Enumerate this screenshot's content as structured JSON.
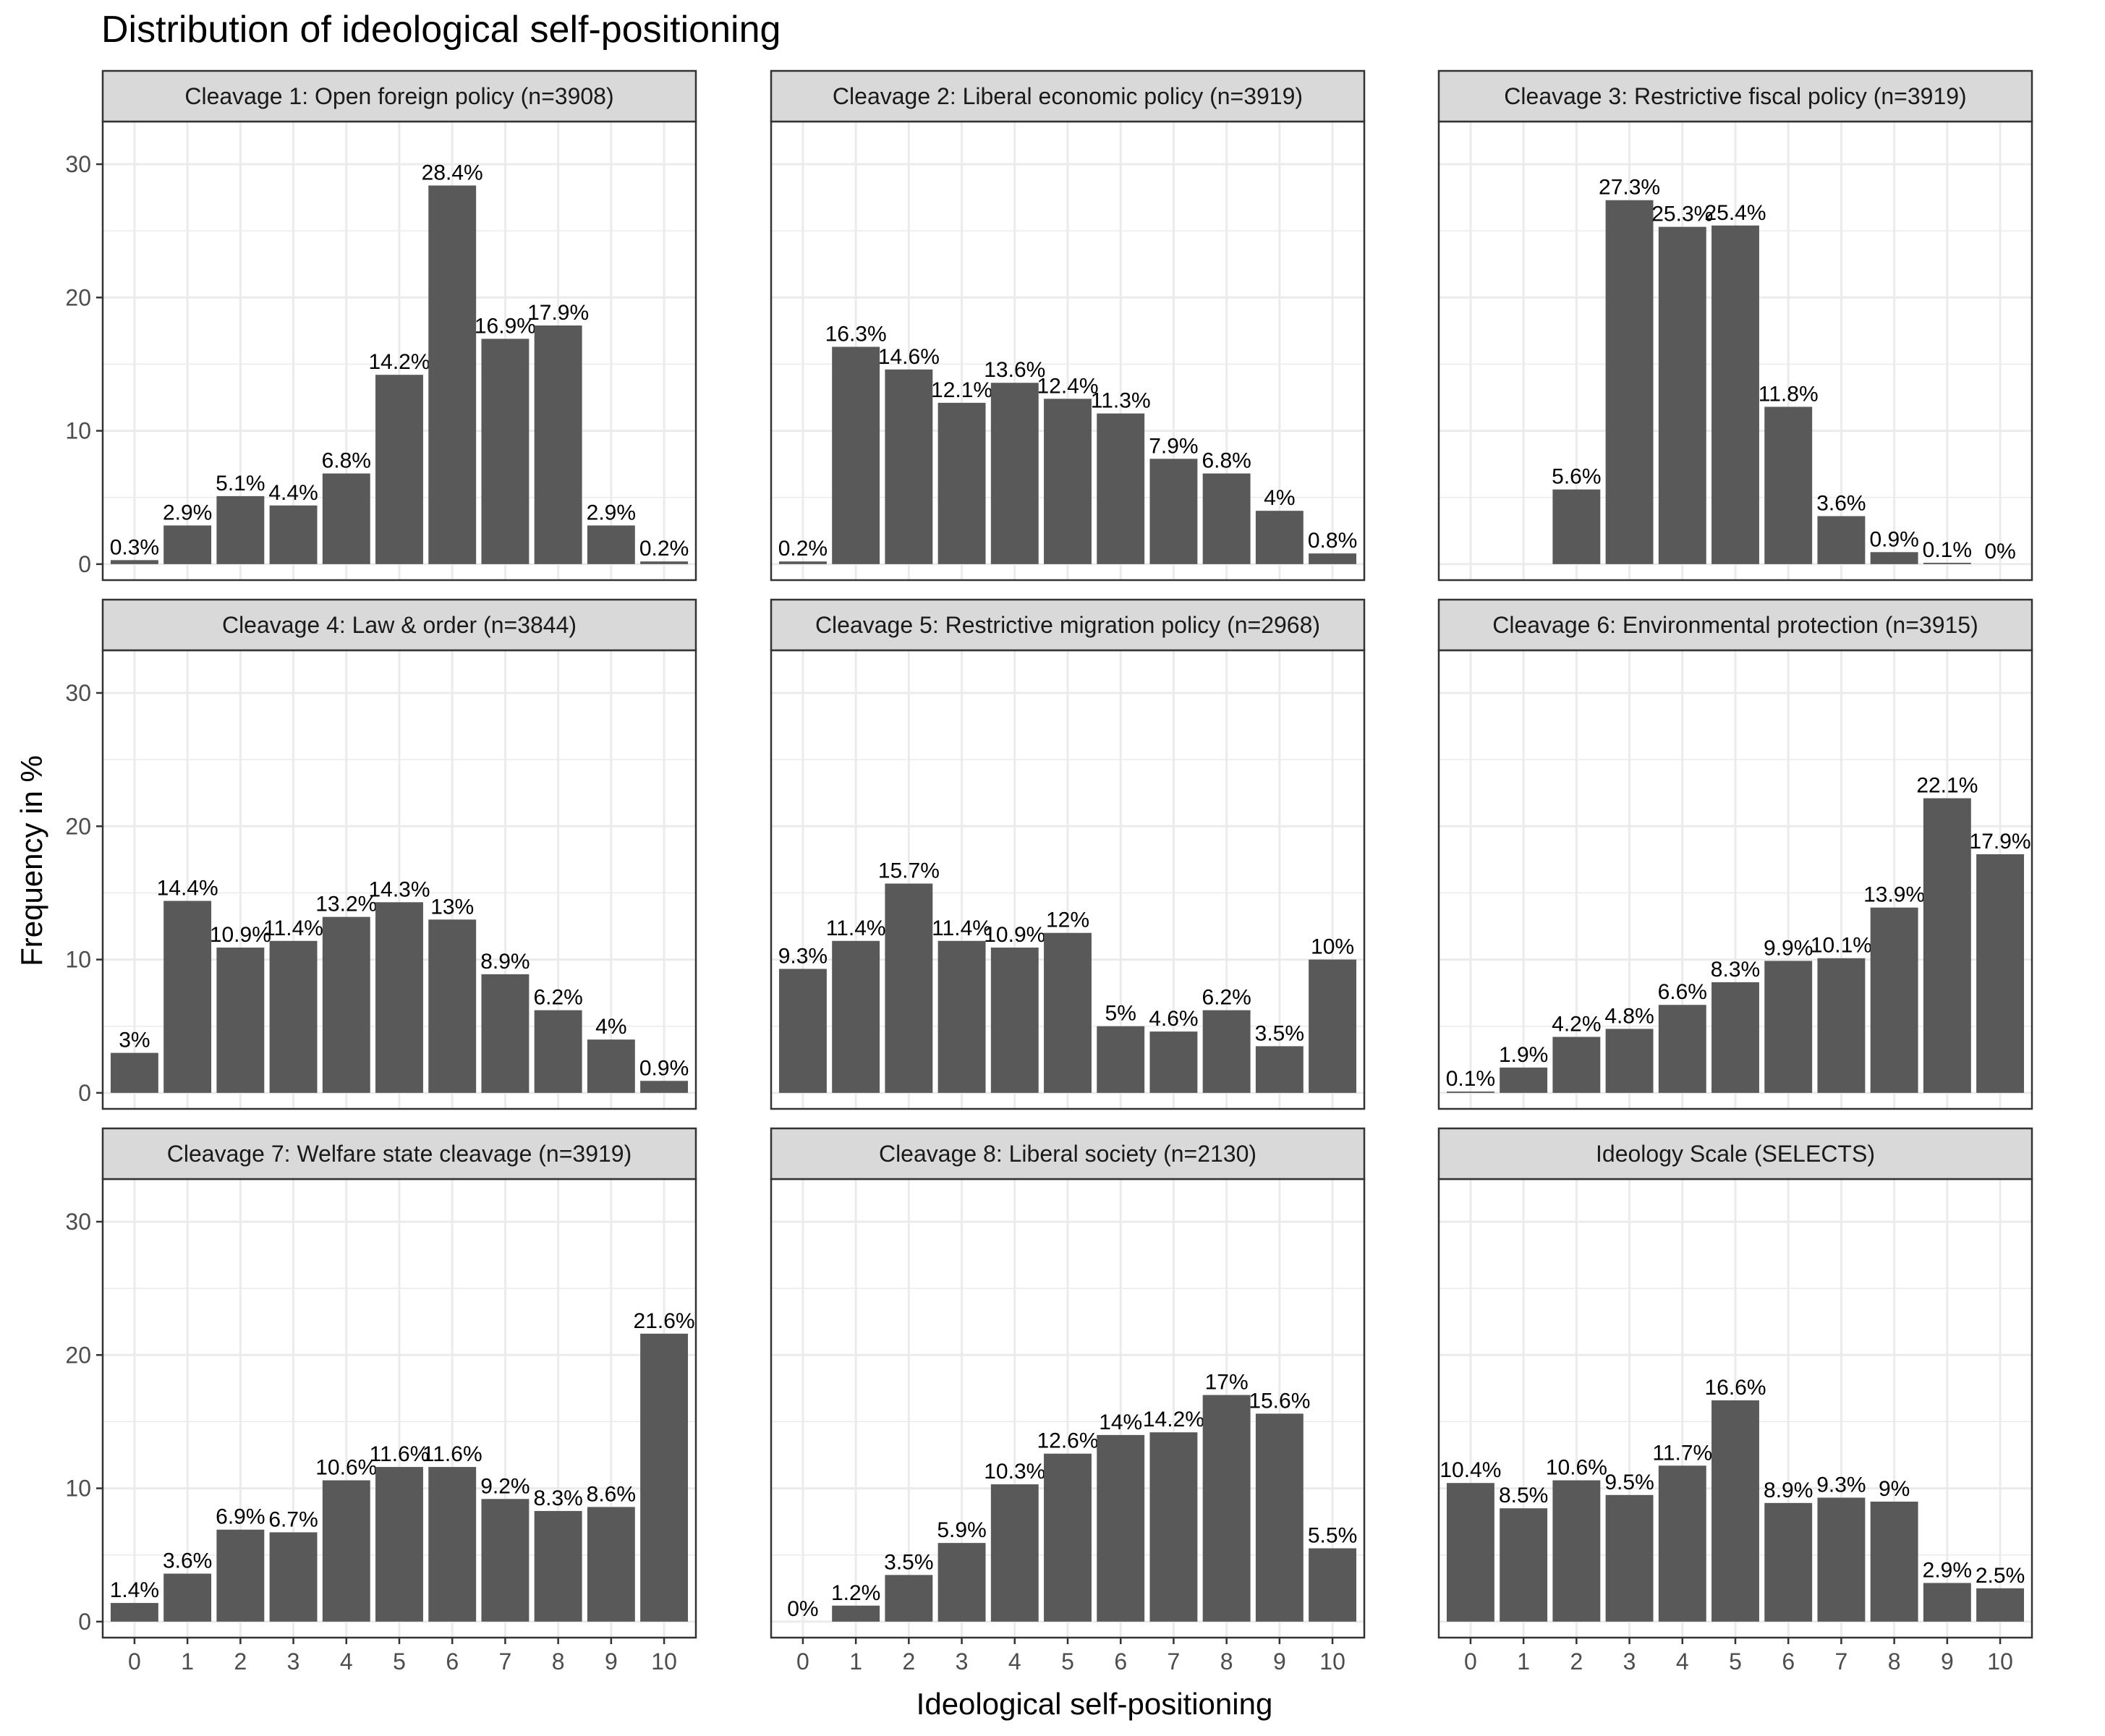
{
  "chart_data": {
    "type": "bar",
    "title": "Distribution of ideological self-positioning",
    "xlabel": "Ideological self-positioning",
    "ylabel": "Frequency in %",
    "categories": [
      "0",
      "1",
      "2",
      "3",
      "4",
      "5",
      "6",
      "7",
      "8",
      "9",
      "10"
    ],
    "ylim": [
      -1.2,
      33.2
    ],
    "yticks": [
      0,
      10,
      20,
      30
    ],
    "grid": true,
    "colors": {
      "bar": "#595959",
      "strip": "#d9d9d9",
      "border": "#333333",
      "grid": "#ebebeb"
    },
    "facets": [
      {
        "name": "Cleavage 1: Open foreign policy (n=3908)",
        "values": [
          0.3,
          2.9,
          5.1,
          4.4,
          6.8,
          14.2,
          28.4,
          16.9,
          17.9,
          2.9,
          0.2
        ],
        "labels": [
          "0.3%",
          "2.9%",
          "5.1%",
          "4.4%",
          "6.8%",
          "14.2%",
          "28.4%",
          "16.9%",
          "17.9%",
          "2.9%",
          "0.2%"
        ]
      },
      {
        "name": "Cleavage 2: Liberal economic policy (n=3919)",
        "values": [
          0.2,
          16.3,
          14.6,
          12.1,
          13.6,
          12.4,
          11.3,
          7.9,
          6.8,
          4,
          0.8
        ],
        "labels": [
          "0.2%",
          "16.3%",
          "14.6%",
          "12.1%",
          "13.6%",
          "12.4%",
          "11.3%",
          "7.9%",
          "6.8%",
          "4%",
          "0.8%"
        ]
      },
      {
        "name": "Cleavage 3: Restrictive fiscal policy (n=3919)",
        "values": [
          null,
          null,
          5.6,
          27.3,
          25.3,
          25.4,
          11.8,
          3.6,
          0.9,
          0.1,
          0
        ],
        "labels": [
          "",
          "",
          "5.6%",
          "27.3%",
          "25.3%",
          "25.4%",
          "11.8%",
          "3.6%",
          "0.9%",
          "0.1%",
          "0%"
        ]
      },
      {
        "name": "Cleavage 4: Law & order (n=3844)",
        "values": [
          3,
          14.4,
          10.9,
          11.4,
          13.2,
          14.3,
          13,
          8.9,
          6.2,
          4,
          0.9
        ],
        "labels": [
          "3%",
          "14.4%",
          "10.9%",
          "11.4%",
          "13.2%",
          "14.3%",
          "13%",
          "8.9%",
          "6.2%",
          "4%",
          "0.9%"
        ]
      },
      {
        "name": "Cleavage 5: Restrictive migration policy (n=2968)",
        "values": [
          9.3,
          11.4,
          15.7,
          11.4,
          10.9,
          12,
          5,
          4.6,
          6.2,
          3.5,
          10
        ],
        "labels": [
          "9.3%",
          "11.4%",
          "15.7%",
          "11.4%",
          "10.9%",
          "12%",
          "5%",
          "4.6%",
          "6.2%",
          "3.5%",
          "10%"
        ]
      },
      {
        "name": "Cleavage 6: Environmental protection (n=3915)",
        "values": [
          0.1,
          1.9,
          4.2,
          4.8,
          6.6,
          8.3,
          9.9,
          10.1,
          13.9,
          22.1,
          17.9
        ],
        "labels": [
          "0.1%",
          "1.9%",
          "4.2%",
          "4.8%",
          "6.6%",
          "8.3%",
          "9.9%",
          "10.1%",
          "13.9%",
          "22.1%",
          "17.9%"
        ]
      },
      {
        "name": "Cleavage 7: Welfare state cleavage (n=3919)",
        "values": [
          1.4,
          3.6,
          6.9,
          6.7,
          10.6,
          11.6,
          11.6,
          9.2,
          8.3,
          8.6,
          21.6
        ],
        "labels": [
          "1.4%",
          "3.6%",
          "6.9%",
          "6.7%",
          "10.6%",
          "11.6%",
          "11.6%",
          "9.2%",
          "8.3%",
          "8.6%",
          "21.6%"
        ]
      },
      {
        "name": "Cleavage 8: Liberal society (n=2130)",
        "values": [
          0,
          1.2,
          3.5,
          5.9,
          10.3,
          12.6,
          14,
          14.2,
          17,
          15.6,
          5.5
        ],
        "labels": [
          "0%",
          "1.2%",
          "3.5%",
          "5.9%",
          "10.3%",
          "12.6%",
          "14%",
          "14.2%",
          "17%",
          "15.6%",
          "5.5%"
        ]
      },
      {
        "name": "Ideology Scale (SELECTS)",
        "values": [
          10.4,
          8.5,
          10.6,
          9.5,
          11.7,
          16.6,
          8.9,
          9.3,
          9,
          2.9,
          2.5
        ],
        "labels": [
          "10.4%",
          "8.5%",
          "10.6%",
          "9.5%",
          "11.7%",
          "16.6%",
          "8.9%",
          "9.3%",
          "9%",
          "2.9%",
          "2.5%"
        ]
      }
    ]
  }
}
